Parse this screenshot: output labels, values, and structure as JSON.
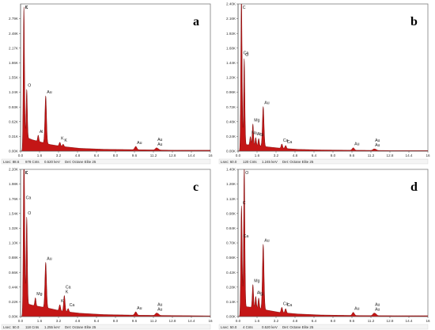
{
  "chart_data": [
    {
      "id": "a",
      "type": "area",
      "panel_label": "a",
      "xlim": [
        0,
        16
      ],
      "ylim": [
        0,
        3.1
      ],
      "x_ticks": [
        "0.0",
        "1.6",
        "3.2",
        "4.8",
        "6.4",
        "8.0",
        "9.6",
        "11.2",
        "12.8",
        "14.4",
        "16"
      ],
      "y_ticks": [
        "0.00K",
        "0.31K",
        "0.62K",
        "0.93K",
        "1.24K",
        "1.55K",
        "1.86K",
        "2.17K",
        "2.48K",
        "2.79K"
      ],
      "peaks": [
        {
          "x": 0.28,
          "y": 2.75,
          "w": 0.05,
          "labels": [
            "C",
            "K"
          ]
        },
        {
          "x": 0.52,
          "y": 1.02,
          "w": 0.05,
          "labels": [
            "O"
          ]
        },
        {
          "x": 1.49,
          "y": 0.13,
          "w": 0.05,
          "labels": [
            "Al"
          ]
        },
        {
          "x": 2.12,
          "y": 1.0,
          "w": 0.065,
          "labels": [
            "Au"
          ]
        },
        {
          "x": 3.31,
          "y": 0.08,
          "w": 0.06,
          "labels": [
            "K"
          ]
        },
        {
          "x": 3.59,
          "y": 0.05,
          "w": 0.06,
          "labels": [
            "K"
          ]
        },
        {
          "x": 9.71,
          "y": 0.07,
          "w": 0.09,
          "labels": [
            "Au"
          ]
        },
        {
          "x": 11.44,
          "y": 0.04,
          "w": 0.09,
          "labels": [
            "Au",
            "Au"
          ]
        },
        {
          "x": 11.6,
          "y": 0.02,
          "w": 0.09,
          "labels": []
        }
      ],
      "background": [
        [
          0.15,
          0.0
        ],
        [
          0.25,
          0.3
        ],
        [
          0.6,
          0.28
        ],
        [
          1.0,
          0.24
        ],
        [
          1.6,
          0.2
        ],
        [
          2.5,
          0.14
        ],
        [
          3.5,
          0.1
        ],
        [
          5.0,
          0.06
        ],
        [
          7.0,
          0.04
        ],
        [
          10.0,
          0.03
        ],
        [
          13.0,
          0.02
        ],
        [
          16.0,
          0.02
        ]
      ],
      "status": {
        "lsec": "Lsec: 88.6",
        "cnts": "978 Cnts",
        "kev": "0.520 keV",
        "det": "Det: Octane Elite 25"
      }
    },
    {
      "id": "b",
      "type": "area",
      "panel_label": "b",
      "xlim": [
        0,
        16
      ],
      "ylim": [
        0,
        2.4
      ],
      "x_ticks": [
        "0.0",
        "1.6",
        "3.2",
        "4.8",
        "6.4",
        "8.0",
        "9.6",
        "11.2",
        "12.8",
        "14.4",
        "16"
      ],
      "y_ticks": [
        "0.00K",
        "0.24K",
        "0.48K",
        "0.72K",
        "0.96K",
        "1.20K",
        "1.44K",
        "1.68K",
        "1.92K",
        "2.16K",
        "2.40K"
      ],
      "peaks": [
        {
          "x": 0.28,
          "y": 2.3,
          "w": 0.05,
          "labels": [
            "C"
          ]
        },
        {
          "x": 0.52,
          "y": 1.4,
          "w": 0.05,
          "labels": [
            "O"
          ]
        },
        {
          "x": 0.34,
          "y": 0.3,
          "w": 0.04,
          "labels": [
            "Ca"
          ]
        },
        {
          "x": 1.04,
          "y": 0.14,
          "w": 0.05,
          "labels": [
            "Na"
          ]
        },
        {
          "x": 1.25,
          "y": 0.35,
          "w": 0.05,
          "labels": [
            "Mg"
          ]
        },
        {
          "x": 1.49,
          "y": 0.13,
          "w": 0.05,
          "labels": [
            "Al"
          ]
        },
        {
          "x": 1.74,
          "y": 0.12,
          "w": 0.05,
          "labels": [
            "Si"
          ]
        },
        {
          "x": 2.12,
          "y": 0.65,
          "w": 0.065,
          "labels": [
            "Au"
          ]
        },
        {
          "x": 3.69,
          "y": 0.07,
          "w": 0.06,
          "labels": [
            "Ca"
          ]
        },
        {
          "x": 4.01,
          "y": 0.05,
          "w": 0.06,
          "labels": [
            "Ca"
          ]
        },
        {
          "x": 9.71,
          "y": 0.04,
          "w": 0.09,
          "labels": [
            "Au"
          ]
        },
        {
          "x": 11.44,
          "y": 0.02,
          "w": 0.09,
          "labels": [
            "Au",
            "Au"
          ]
        },
        {
          "x": 11.6,
          "y": 0.015,
          "w": 0.09,
          "labels": []
        }
      ],
      "background": [
        [
          0.15,
          0.0
        ],
        [
          0.25,
          0.12
        ],
        [
          0.6,
          0.11
        ],
        [
          1.0,
          0.1
        ],
        [
          1.6,
          0.09
        ],
        [
          2.5,
          0.07
        ],
        [
          3.5,
          0.05
        ],
        [
          5.0,
          0.03
        ],
        [
          7.0,
          0.02
        ],
        [
          10.0,
          0.015
        ],
        [
          13.0,
          0.01
        ],
        [
          16.0,
          0.01
        ]
      ],
      "status": {
        "lsec": "Lsec: 60.0",
        "cnts": "120 Cnts",
        "kev": "1.245 keV",
        "det": "Det: Octane Elite 25"
      }
    },
    {
      "id": "c",
      "type": "area",
      "panel_label": "c",
      "xlim": [
        0,
        16
      ],
      "ylim": [
        0,
        2.2
      ],
      "x_ticks": [
        "0.0",
        "1.6",
        "3.2",
        "4.8",
        "6.4",
        "8.0",
        "9.6",
        "11.2",
        "12.8",
        "14.4",
        "16"
      ],
      "y_ticks": [
        "0.00K",
        "0.22K",
        "0.44K",
        "0.66K",
        "0.88K",
        "1.10K",
        "1.32K",
        "1.54K",
        "1.76K",
        "1.98K",
        "2.20K"
      ],
      "peaks": [
        {
          "x": 0.28,
          "y": 2.1,
          "w": 0.05,
          "labels": [
            "K",
            "C"
          ]
        },
        {
          "x": 0.52,
          "y": 1.3,
          "w": 0.05,
          "labels": [
            "O"
          ]
        },
        {
          "x": 0.34,
          "y": 0.5,
          "w": 0.04,
          "labels": [
            "Ca"
          ]
        },
        {
          "x": 1.25,
          "y": 0.12,
          "w": 0.05,
          "labels": [
            "Mg"
          ]
        },
        {
          "x": 2.12,
          "y": 0.68,
          "w": 0.065,
          "labels": [
            "Au"
          ]
        },
        {
          "x": 3.31,
          "y": 0.09,
          "w": 0.06,
          "labels": [
            "K"
          ]
        },
        {
          "x": 3.69,
          "y": 0.24,
          "w": 0.06,
          "labels": [
            "Ca",
            "K"
          ]
        },
        {
          "x": 4.01,
          "y": 0.05,
          "w": 0.06,
          "labels": [
            "Ca"
          ]
        },
        {
          "x": 9.71,
          "y": 0.05,
          "w": 0.09,
          "labels": [
            "Au"
          ]
        },
        {
          "x": 11.44,
          "y": 0.03,
          "w": 0.09,
          "labels": [
            "Au",
            "Au"
          ]
        },
        {
          "x": 11.6,
          "y": 0.02,
          "w": 0.09,
          "labels": []
        }
      ],
      "background": [
        [
          0.15,
          0.0
        ],
        [
          0.25,
          0.2
        ],
        [
          0.6,
          0.19
        ],
        [
          1.0,
          0.17
        ],
        [
          1.6,
          0.15
        ],
        [
          2.5,
          0.12
        ],
        [
          3.5,
          0.08
        ],
        [
          5.0,
          0.05
        ],
        [
          7.0,
          0.03
        ],
        [
          10.0,
          0.02
        ],
        [
          13.0,
          0.015
        ],
        [
          16.0,
          0.01
        ]
      ],
      "status": {
        "lsec": "Lsec: 50.0",
        "cnts": "118 Cnts",
        "kev": "1.255 keV",
        "det": "Det: Octane Elite 25"
      }
    },
    {
      "id": "d",
      "type": "area",
      "panel_label": "d",
      "xlim": [
        0,
        16
      ],
      "ylim": [
        0,
        1.4
      ],
      "x_ticks": [
        "0.0",
        "1.6",
        "3.2",
        "4.8",
        "6.4",
        "8.0",
        "9.6",
        "11.2",
        "12.8",
        "14.4",
        "16"
      ],
      "y_ticks": [
        "0.00K",
        "0.14K",
        "0.28K",
        "0.42K",
        "0.56K",
        "0.70K",
        "0.84K",
        "0.98K",
        "1.12K",
        "1.26K",
        "1.40K"
      ],
      "peaks": [
        {
          "x": 0.52,
          "y": 1.35,
          "w": 0.05,
          "labels": [
            "O"
          ]
        },
        {
          "x": 0.28,
          "y": 0.88,
          "w": 0.05,
          "labels": [
            "C"
          ]
        },
        {
          "x": 0.34,
          "y": 0.2,
          "w": 0.04,
          "labels": [
            "Ca"
          ]
        },
        {
          "x": 1.25,
          "y": 0.22,
          "w": 0.05,
          "labels": [
            "Mg"
          ]
        },
        {
          "x": 1.49,
          "y": 0.11,
          "w": 0.05,
          "labels": [
            "Al"
          ]
        },
        {
          "x": 1.74,
          "y": 0.1,
          "w": 0.05,
          "labels": [
            "Si"
          ]
        },
        {
          "x": 2.12,
          "y": 0.62,
          "w": 0.065,
          "labels": [
            "Au"
          ]
        },
        {
          "x": 3.69,
          "y": 0.05,
          "w": 0.06,
          "labels": [
            "Ca"
          ]
        },
        {
          "x": 4.01,
          "y": 0.04,
          "w": 0.06,
          "labels": [
            "Ca"
          ]
        },
        {
          "x": 9.71,
          "y": 0.03,
          "w": 0.09,
          "labels": [
            "Au"
          ]
        },
        {
          "x": 11.44,
          "y": 0.02,
          "w": 0.09,
          "labels": [
            "Au",
            "Au"
          ]
        },
        {
          "x": 11.6,
          "y": 0.015,
          "w": 0.09,
          "labels": []
        }
      ],
      "background": [
        [
          0.15,
          0.0
        ],
        [
          0.25,
          0.1
        ],
        [
          0.6,
          0.095
        ],
        [
          1.0,
          0.09
        ],
        [
          1.6,
          0.08
        ],
        [
          2.5,
          0.06
        ],
        [
          3.5,
          0.04
        ],
        [
          5.0,
          0.025
        ],
        [
          7.0,
          0.015
        ],
        [
          10.0,
          0.01
        ],
        [
          13.0,
          0.008
        ],
        [
          16.0,
          0.008
        ]
      ],
      "status": {
        "lsec": "Lsec: 50.0",
        "cnts": "4 Cnts",
        "kev": "0.520 keV",
        "det": "Det: Octane Elite 25"
      }
    }
  ],
  "colors": {
    "spectrum": "#c41616",
    "spectrum_edge": "#7a0a0a",
    "frame": "#7d7d7d"
  }
}
